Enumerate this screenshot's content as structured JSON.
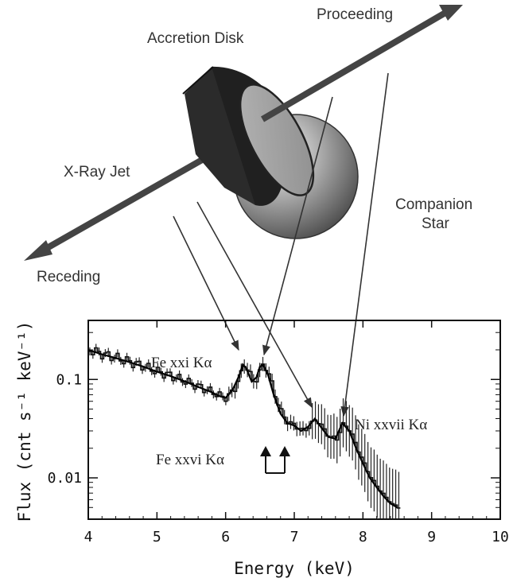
{
  "labels": {
    "proceeding": "Proceeding",
    "accretion_disk": "Accretion Disk",
    "xray_jet": "X-Ray Jet",
    "companion_star": [
      "Companion",
      "Star"
    ],
    "receding": "Receding"
  },
  "spectrum_annotations": {
    "fe_xxi": "Fe xxi Kα",
    "fe_xxvi": "Fe xxvi Kα",
    "ni_xxvii": "Ni xxvii Kα"
  },
  "chart_data": {
    "type": "line",
    "xlabel": "Energy (keV)",
    "ylabel": "Flux (cnt s⁻¹ keV⁻¹)",
    "xlim": [
      4,
      10
    ],
    "ylim_log10": [
      -2.42,
      -0.4
    ],
    "yscale": "log",
    "x_ticks": [
      4,
      5,
      6,
      7,
      8,
      9,
      10
    ],
    "y_ticks": [
      {
        "value": 0.1,
        "label": "0.1"
      },
      {
        "value": 0.01,
        "label": "0.01"
      }
    ],
    "series": [
      {
        "x": [
          4.0,
          4.2,
          4.4,
          4.6,
          4.8,
          5.0,
          5.2,
          5.4,
          5.6,
          5.8,
          5.9,
          6.0,
          6.1,
          6.2,
          6.25,
          6.3,
          6.38,
          6.45,
          6.5,
          6.55,
          6.62,
          6.7,
          6.8,
          6.9,
          7.0,
          7.1,
          7.2,
          7.3,
          7.4,
          7.5,
          7.6,
          7.7,
          7.8,
          7.9,
          8.0,
          8.1,
          8.2,
          8.3,
          8.4,
          8.5
        ],
        "y": [
          0.2,
          0.18,
          0.165,
          0.15,
          0.135,
          0.12,
          0.108,
          0.096,
          0.084,
          0.074,
          0.068,
          0.065,
          0.078,
          0.11,
          0.142,
          0.13,
          0.095,
          0.105,
          0.135,
          0.14,
          0.11,
          0.07,
          0.045,
          0.036,
          0.034,
          0.03,
          0.033,
          0.04,
          0.032,
          0.026,
          0.025,
          0.036,
          0.03,
          0.02,
          0.014,
          0.01,
          0.008,
          0.0065,
          0.0055,
          0.005
        ]
      }
    ]
  }
}
